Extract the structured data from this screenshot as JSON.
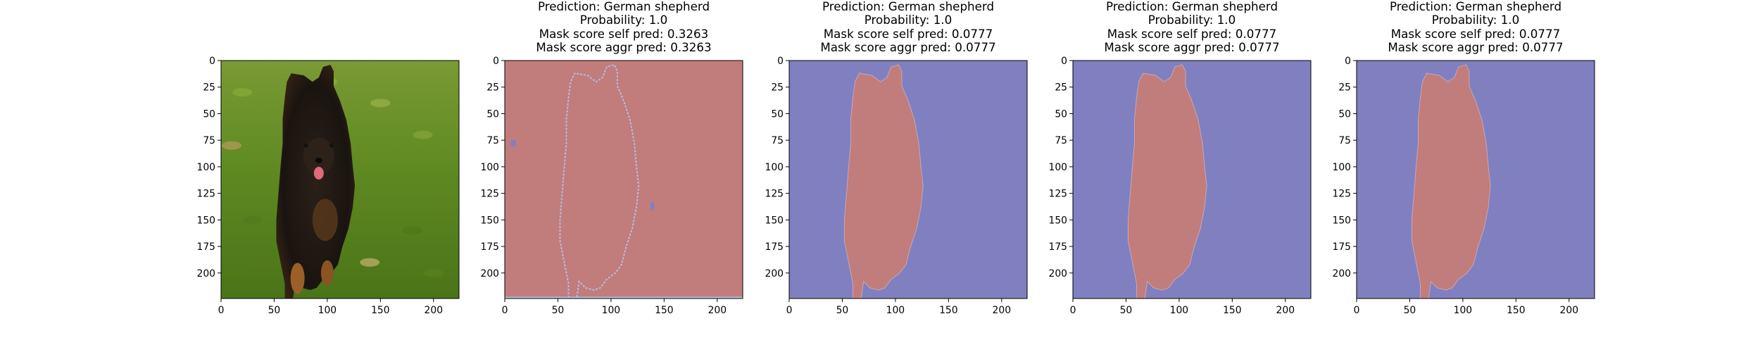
{
  "figure": {
    "background": "#ffffff"
  },
  "colors": {
    "mask_positive": "#c17c7c",
    "mask_negative": "#8080c0",
    "boundary": "#b4c0e4",
    "axis": "#000000"
  },
  "panels": [
    {
      "kind": "image",
      "content": "photo of a German shepherd puppy running on grass",
      "title_lines": []
    },
    {
      "kind": "mask",
      "title_lines": [
        "Prediction: German shepherd",
        "Probability: 1.0",
        "Mask score self pred: 0.3263",
        "Mask score aggr pred: 0.3263"
      ],
      "mask_style": "outline"
    },
    {
      "kind": "mask",
      "title_lines": [
        "Prediction: German shepherd",
        "Probability: 1.0",
        "Mask score self pred: 0.0777",
        "Mask score aggr pred: 0.0777"
      ],
      "mask_style": "fill"
    },
    {
      "kind": "mask",
      "title_lines": [
        "Prediction: German shepherd",
        "Probability: 1.0",
        "Mask score self pred: 0.0777",
        "Mask score aggr pred: 0.0777"
      ],
      "mask_style": "fill"
    },
    {
      "kind": "mask",
      "title_lines": [
        "Prediction: German shepherd",
        "Probability: 1.0",
        "Mask score self pred: 0.0777",
        "Mask score aggr pred: 0.0777"
      ],
      "mask_style": "fill"
    }
  ],
  "chart_data": {
    "type": "heatmap",
    "description": "Five image panels: original photo followed by four binary segmentation masks",
    "x_ticks": [
      "0",
      "50",
      "100",
      "150",
      "200"
    ],
    "y_ticks": [
      "0",
      "25",
      "50",
      "75",
      "100",
      "125",
      "150",
      "175",
      "200"
    ],
    "xlim": [
      0,
      224
    ],
    "ylim": [
      224,
      0
    ],
    "prediction": "German shepherd",
    "probability": 1.0,
    "mask_scores": [
      {
        "panel": 2,
        "self_pred": 0.3263,
        "aggr_pred": 0.3263
      },
      {
        "panel": 3,
        "self_pred": 0.0777,
        "aggr_pred": 0.0777
      },
      {
        "panel": 4,
        "self_pred": 0.0777,
        "aggr_pred": 0.0777
      },
      {
        "panel": 5,
        "self_pred": 0.0777,
        "aggr_pred": 0.0777
      }
    ],
    "mask_outline": [
      [
        60,
        230
      ],
      [
        60,
        210
      ],
      [
        56,
        190
      ],
      [
        52,
        170
      ],
      [
        52,
        150
      ],
      [
        54,
        125
      ],
      [
        56,
        100
      ],
      [
        58,
        78
      ],
      [
        58,
        55
      ],
      [
        60,
        35
      ],
      [
        62,
        20
      ],
      [
        66,
        12
      ],
      [
        78,
        14
      ],
      [
        86,
        20
      ],
      [
        92,
        16
      ],
      [
        96,
        6
      ],
      [
        103,
        4
      ],
      [
        106,
        10
      ],
      [
        106,
        24
      ],
      [
        112,
        38
      ],
      [
        118,
        56
      ],
      [
        122,
        78
      ],
      [
        124,
        100
      ],
      [
        126,
        118
      ],
      [
        124,
        138
      ],
      [
        120,
        158
      ],
      [
        114,
        176
      ],
      [
        110,
        192
      ],
      [
        104,
        200
      ],
      [
        96,
        206
      ],
      [
        90,
        214
      ],
      [
        84,
        216
      ],
      [
        76,
        214
      ],
      [
        70,
        208
      ],
      [
        68,
        222
      ],
      [
        66,
        232
      ]
    ]
  }
}
